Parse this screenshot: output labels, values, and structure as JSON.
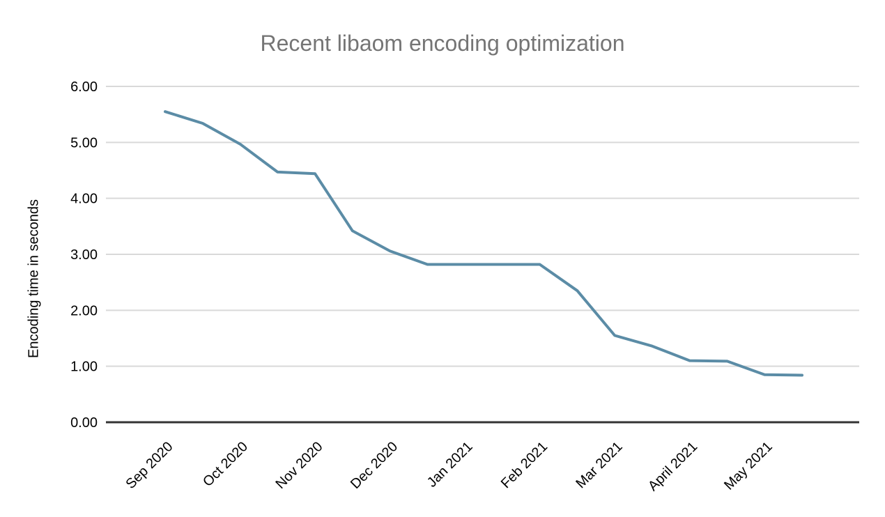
{
  "chart_data": {
    "type": "line",
    "title": "Recent libaom encoding optimization",
    "ylabel": "Encoding time in seconds",
    "ylim": [
      0,
      6
    ],
    "ytick_labels": [
      "0.00",
      "1.00",
      "2.00",
      "3.00",
      "4.00",
      "5.00",
      "6.00"
    ],
    "x_tick_labels": [
      "Sep 2020",
      "Oct 2020",
      "Nov 2020",
      "Dec 2020",
      "Jan 2021",
      "Feb 2021",
      "Mar 2021",
      "April 2021",
      "May 2021"
    ],
    "x_months": [
      0,
      0.5,
      1,
      1.5,
      2,
      2.5,
      3,
      3.5,
      4,
      4.5,
      5,
      5.5,
      6,
      6.5,
      7,
      7.5,
      8,
      8.5
    ],
    "series": [
      {
        "color": "#5b8ca6",
        "values": [
          5.55,
          5.34,
          4.97,
          4.47,
          4.44,
          3.42,
          3.06,
          2.82,
          2.82,
          2.82,
          2.82,
          2.35,
          1.55,
          1.36,
          1.1,
          1.09,
          0.85,
          0.84
        ]
      }
    ],
    "legend": "none",
    "grid": "horizontal",
    "grid_color": "#d9d9d9",
    "axis_color": "#333333",
    "title_color": "#757575",
    "label_color": "#000000",
    "background_color": "#ffffff"
  }
}
